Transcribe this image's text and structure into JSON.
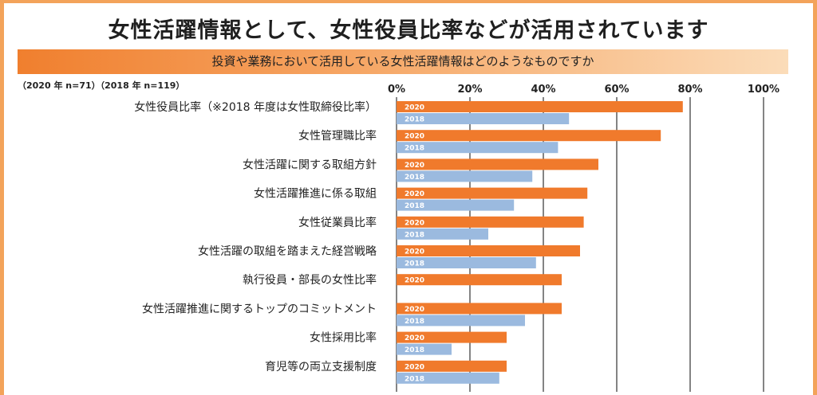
{
  "title": "女性活躍情報として、女性役員比率などが活用されています",
  "subtitle": "投資や業務において活用している女性活躍情報はどのようなものですか",
  "sample_note": "（2020 年 n=71）（2018 年 n=119）",
  "colors": {
    "s2020": "#f07a2c",
    "s2018": "#9bbadf",
    "grid": "#333333",
    "accent": "#f3a35a"
  },
  "chart_data": {
    "type": "bar",
    "orientation": "horizontal",
    "title": "女性活躍情報として、女性役員比率などが活用されています",
    "subtitle": "投資や業務において活用している女性活躍情報はどのようなものですか",
    "xlim": [
      0,
      100
    ],
    "xticks": [
      "0%",
      "20%",
      "40%",
      "60%",
      "80%",
      "100%"
    ],
    "grid": true,
    "categories": [
      "女性役員比率（※2018 年度は女性取締役比率）",
      "女性管理職比率",
      "女性活躍に関する取組方針",
      "女性活躍推進に係る取組",
      "女性従業員比率",
      "女性活躍の取組を踏まえた経営戦略",
      "執行役員・部長の女性比率",
      "女性活躍推進に関するトップのコミットメント",
      "女性採用比率",
      "育児等の両立支援制度"
    ],
    "series": [
      {
        "name": "2020",
        "values": [
          78,
          72,
          55,
          52,
          51,
          50,
          45,
          45,
          30,
          30
        ]
      },
      {
        "name": "2018",
        "values": [
          47,
          44,
          37,
          32,
          25,
          38,
          null,
          35,
          15,
          28
        ]
      }
    ]
  }
}
